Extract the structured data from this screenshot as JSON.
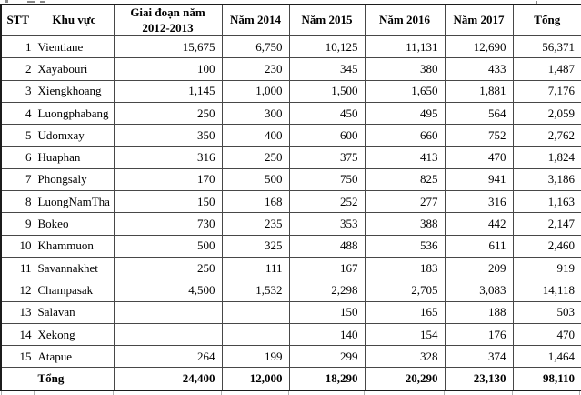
{
  "colors": {
    "background": "#ffffff",
    "text": "#000000",
    "grid_border": "#474747",
    "outer_border": "#1c1c1c",
    "cell_flag_green": "#1E7145"
  },
  "table": {
    "headers": {
      "stt": "STT",
      "region": "Khu vực",
      "period_line1": "Giai đoạn năm",
      "period_line2": "2012-2013",
      "y2014": "Năm 2014",
      "y2015": "Năm 2015",
      "y2016": "Năm 2016",
      "y2017": "Năm 2017",
      "total": "Tổng"
    },
    "rows": [
      {
        "stt": "1",
        "region": "Vientiane",
        "values": [
          "15,675",
          "6,750",
          "10,125",
          "11,131",
          "12,690",
          "56,371"
        ]
      },
      {
        "stt": "2",
        "region": "Xayabouri",
        "values": [
          "100",
          "230",
          "345",
          "380",
          "433",
          "1,487"
        ]
      },
      {
        "stt": "3",
        "region": "Xiengkhoang",
        "values": [
          "1,145",
          "1,000",
          "1,500",
          "1,650",
          "1,881",
          "7,176"
        ]
      },
      {
        "stt": "4",
        "region": "Luongphabang",
        "values": [
          "250",
          "300",
          "450",
          "495",
          "564",
          "2,059"
        ]
      },
      {
        "stt": "5",
        "region": "Udomxay",
        "values": [
          "350",
          "400",
          "600",
          "660",
          "752",
          "2,762"
        ]
      },
      {
        "stt": "6",
        "region": "Huaphan",
        "values": [
          "316",
          "250",
          "375",
          "413",
          "470",
          "1,824"
        ]
      },
      {
        "stt": "7",
        "region": "Phongsaly",
        "values": [
          "170",
          "500",
          "750",
          "825",
          "941",
          "3,186"
        ]
      },
      {
        "stt": "8",
        "region": "LuongNamTha",
        "values": [
          "150",
          "168",
          "252",
          "277",
          "316",
          "1,163"
        ]
      },
      {
        "stt": "9",
        "region": "Bokeo",
        "values": [
          "730",
          "235",
          "353",
          "388",
          "442",
          "2,147"
        ]
      },
      {
        "stt": "10",
        "region": "Khammuon",
        "values": [
          "500",
          "325",
          "488",
          "536",
          "611",
          "2,460"
        ]
      },
      {
        "stt": "11",
        "region": "Savannakhet",
        "values": [
          "250",
          "111",
          "167",
          "183",
          "209",
          "919"
        ]
      },
      {
        "stt": "12",
        "region": "Champasak",
        "values": [
          "4,500",
          "1,532",
          "2,298",
          "2,705",
          "3,083",
          "14,118"
        ],
        "marker_value_index": 3
      },
      {
        "stt": "13",
        "region": "Salavan",
        "values": [
          "",
          "",
          "150",
          "165",
          "188",
          "503"
        ]
      },
      {
        "stt": "14",
        "region": "Xekong",
        "values": [
          "",
          "",
          "140",
          "154",
          "176",
          "470"
        ]
      },
      {
        "stt": "15",
        "region": "Atapue",
        "values": [
          "264",
          "199",
          "299",
          "328",
          "374",
          "1,464"
        ]
      }
    ],
    "total_row": {
      "label": "Tổng",
      "values": [
        "24,400",
        "12,000",
        "18,290",
        "20,290",
        "23,130",
        "98,110"
      ]
    },
    "cell_flag": {
      "description": "green corner indicator",
      "row_stt": "12",
      "column": "Năm 2016"
    }
  }
}
